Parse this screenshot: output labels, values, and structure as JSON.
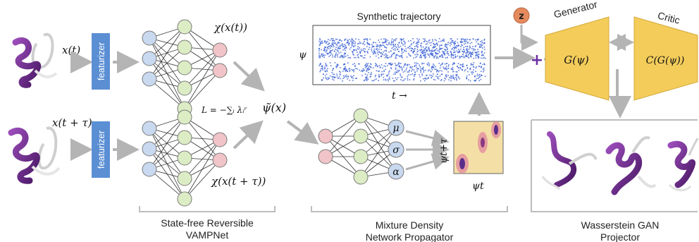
{
  "featurizer_label": "featurizer",
  "inputs": {
    "top": "x(t)",
    "bottom": "x(t + τ)"
  },
  "vampnet": {
    "output_top": "χ(x(t))",
    "output_bottom": "χ(x(t + τ))",
    "loss": "L = −∑ᵢ λᵢʳ",
    "latent": "ψ̃(x)",
    "caption_line1": "State-free Reversible",
    "caption_line2": "VAMPNet"
  },
  "trajectory": {
    "title": "Synthetic trajectory",
    "ylabel": "ψ",
    "xlabel": "t →"
  },
  "mdn": {
    "outputs": [
      "μ",
      "σ",
      "α"
    ],
    "heatmap_xlabel": "ψt",
    "heatmap_ylabel": "ψt+τ",
    "caption_line1": "Mixture Density",
    "caption_line2": "Network Propagator"
  },
  "gan": {
    "noise": "z",
    "generator_title": "Generator",
    "generator_fn": "G(ψ)",
    "critic_title": "Critic",
    "critic_fn": "C(G(ψ))",
    "caption_line1": "Wasserstein GAN",
    "caption_line2": "Projector"
  },
  "colors": {
    "featurizer": "#5b8fd4",
    "input_node": "#c9d9ef",
    "hidden_node": "#dcecc4",
    "output_node": "#f0c4c8",
    "mdn_out_node": "#c9d9ef",
    "arrow": "#b4b4b4",
    "gan_box": "#f3cc5a",
    "noise": "#e58a5c",
    "plus": "#6a2fa2",
    "protein": "#7b2f98",
    "scatter": "#3e64d6"
  }
}
